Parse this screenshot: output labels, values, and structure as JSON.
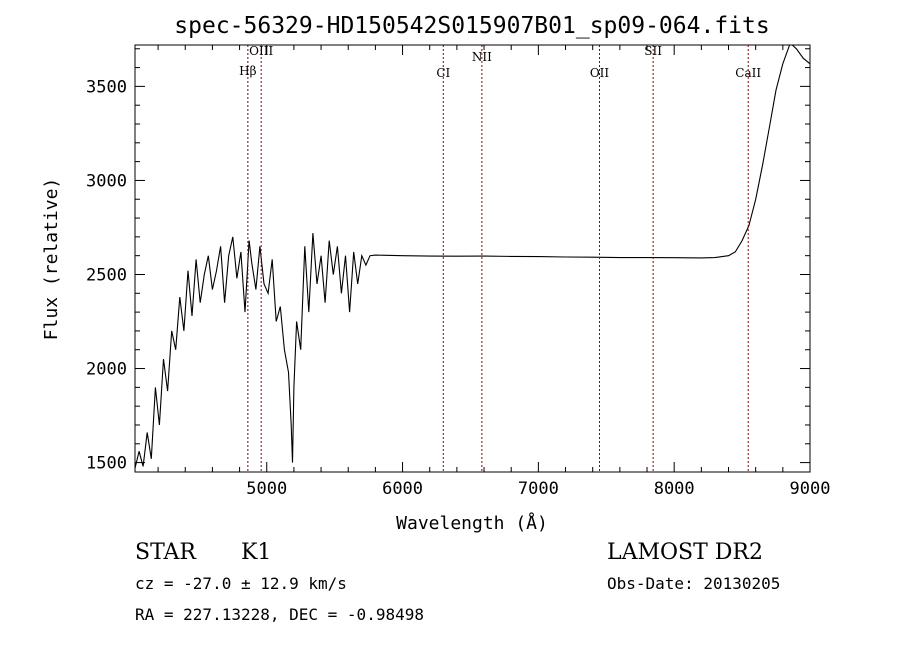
{
  "chart_data": {
    "type": "line",
    "title": "spec-56329-HD150542S015907B01_sp09-064.fits",
    "xlabel": "Wavelength (Å)",
    "ylabel": "Flux (relative)",
    "xlim": [
      4030,
      9000
    ],
    "ylim": [
      1450,
      3720
    ],
    "x_ticks": [
      5000,
      6000,
      7000,
      8000,
      9000
    ],
    "x_tick_labels": [
      "5000",
      "6000",
      "7000",
      "8000",
      "9000"
    ],
    "y_ticks": [
      1500,
      2000,
      2500,
      3000,
      3500
    ],
    "y_tick_labels": [
      "1500",
      "2000",
      "2500",
      "3000",
      "3500"
    ],
    "grid": false,
    "line_color": "#000000",
    "marker_color": "#8b0000",
    "series": [
      {
        "x": [
          4030,
          4060,
          4090,
          4120,
          4150,
          4180,
          4210,
          4240,
          4270,
          4300,
          4330,
          4360,
          4390,
          4420,
          4450,
          4480,
          4510,
          4540,
          4570,
          4600,
          4630,
          4660,
          4690,
          4720,
          4750,
          4780,
          4810,
          4840,
          4870,
          4890,
          4920,
          4950,
          4980,
          5010,
          5040,
          5070,
          5100,
          5130,
          5160,
          5180,
          5190,
          5200,
          5220,
          5250,
          5280,
          5310,
          5340,
          5370,
          5400,
          5430,
          5460,
          5490,
          5520,
          5550,
          5580,
          5610,
          5640,
          5670,
          5700,
          5730,
          5760,
          5800,
          6000,
          6200,
          6400,
          6600,
          6800,
          7000,
          7200,
          7400,
          7600,
          7800,
          8000,
          8200,
          8300,
          8400,
          8450,
          8500,
          8550,
          8600,
          8650,
          8700,
          8750,
          8800,
          8850,
          8870,
          8900,
          8950,
          9000
        ],
        "y": [
          1470,
          1560,
          1480,
          1660,
          1520,
          1900,
          1700,
          2050,
          1880,
          2200,
          2100,
          2380,
          2200,
          2520,
          2280,
          2580,
          2350,
          2500,
          2600,
          2420,
          2520,
          2650,
          2350,
          2600,
          2700,
          2480,
          2620,
          2300,
          2680,
          2560,
          2420,
          2650,
          2450,
          2400,
          2580,
          2250,
          2330,
          2100,
          1980,
          1700,
          1500,
          1900,
          2250,
          2100,
          2650,
          2300,
          2720,
          2450,
          2600,
          2350,
          2680,
          2500,
          2650,
          2400,
          2600,
          2300,
          2620,
          2450,
          2600,
          2550,
          2600,
          2603,
          2600,
          2598,
          2597,
          2598,
          2596,
          2595,
          2593,
          2592,
          2590,
          2590,
          2589,
          2588,
          2590,
          2600,
          2620,
          2680,
          2760,
          2900,
          3080,
          3280,
          3480,
          3620,
          3730,
          3730,
          3700,
          3650,
          3620
        ]
      }
    ],
    "line_markers": [
      {
        "label": "Hβ",
        "x": 4861
      },
      {
        "label": "OIII",
        "x": 4959
      },
      {
        "label": "CI",
        "x": 6300
      },
      {
        "label": "NII",
        "x": 6584
      },
      {
        "label": "OII",
        "x": 7450
      },
      {
        "label": "SII",
        "x": 7845
      },
      {
        "label": "CaII",
        "x": 8545
      }
    ]
  },
  "info": {
    "object_type": "STAR",
    "subclass": "K1",
    "redshift": "cz = -27.0 ± 12.9 km/s",
    "coords": "RA = 227.13228, DEC =  -0.98498",
    "survey": "LAMOST DR2",
    "obs_date": "Obs-Date: 20130205"
  }
}
